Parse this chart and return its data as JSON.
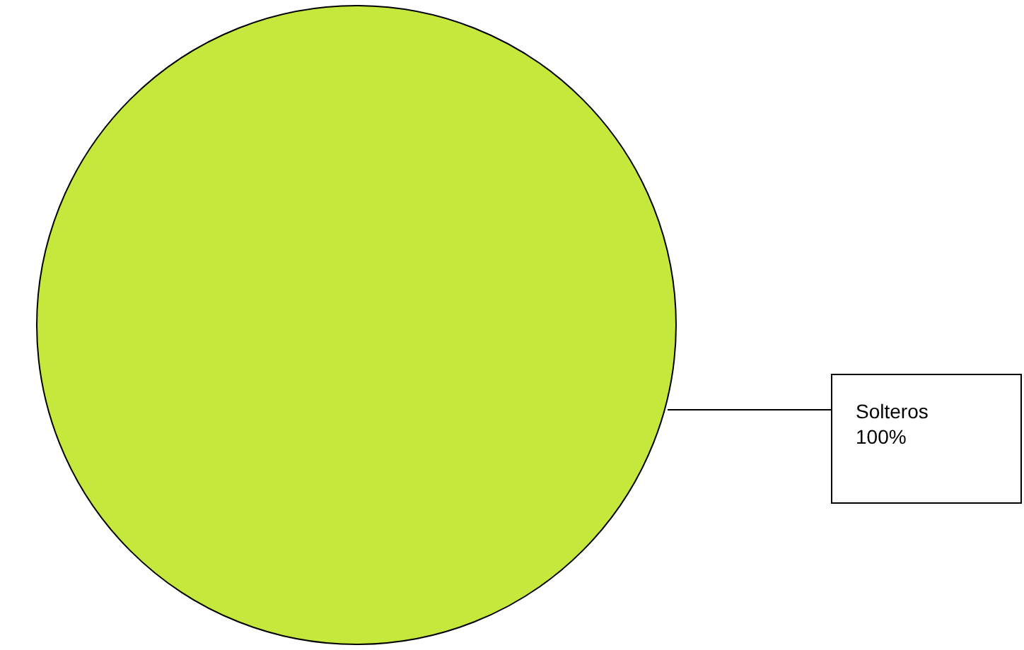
{
  "chart_data": {
    "type": "pie",
    "categories": [
      "Solteros"
    ],
    "values": [
      100
    ],
    "colors": [
      "#c6e83c"
    ],
    "value_labels": [
      "100%"
    ]
  }
}
